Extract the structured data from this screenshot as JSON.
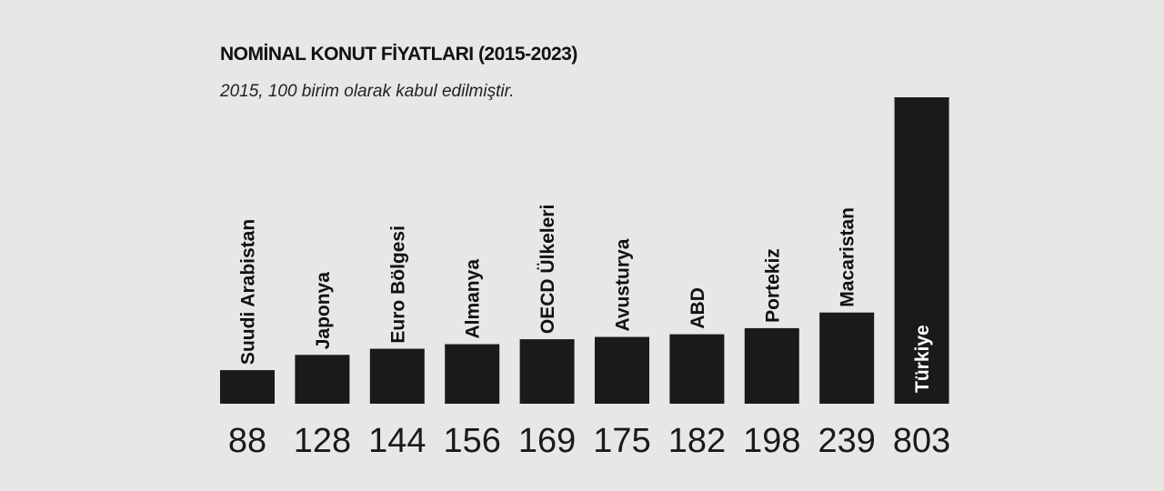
{
  "chart_data": {
    "type": "bar",
    "title": "NOMİNAL KONUT FİYATLARI (2015-2023)",
    "subtitle": "2015, 100 birim olarak kabul edilmiştir.",
    "categories": [
      "Suudi Arabistan",
      "Japonya",
      "Euro Bölgesi",
      "Almanya",
      "OECD Ülkeleri",
      "Avusturya",
      "ABD",
      "Portekiz",
      "Macaristan",
      "Türkiye"
    ],
    "values": [
      88,
      128,
      144,
      156,
      169,
      175,
      182,
      198,
      239,
      803
    ],
    "color": "#1a1a1a"
  }
}
